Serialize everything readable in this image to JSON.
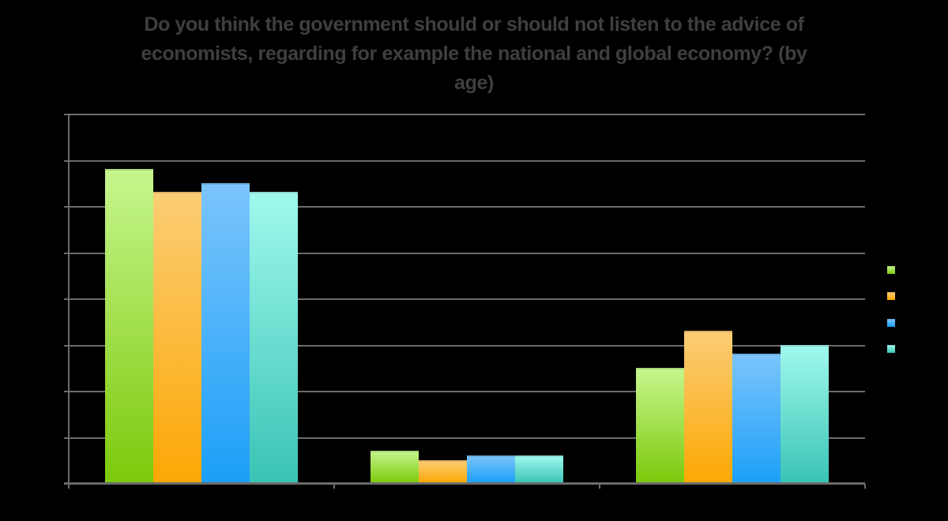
{
  "chart_data": {
    "type": "bar",
    "title": "Do you think the government should or should not listen to the advice of economists, regarding for example the national and global economy? (by age)",
    "title_lines": [
      "Do you think the government should or should not listen to the advice of",
      "economists, regarding for example the national and global economy? (by",
      "age)"
    ],
    "categories": [
      "",
      "",
      ""
    ],
    "series": [
      {
        "name": "",
        "color_top": "#C6F68E",
        "color_bottom": "#7CC90B",
        "values": [
          68,
          7,
          25
        ]
      },
      {
        "name": "",
        "color_top": "#FBCD75",
        "color_bottom": "#FCA805",
        "values": [
          63,
          5,
          33
        ]
      },
      {
        "name": "",
        "color_top": "#7BC5FB",
        "color_bottom": "#1C9FF8",
        "values": [
          65,
          6,
          28
        ]
      },
      {
        "name": "",
        "color_top": "#A1F9EE",
        "color_bottom": "#39C3B4",
        "values": [
          63,
          6,
          30
        ]
      }
    ],
    "xlabel": "",
    "ylabel": "",
    "ylim": [
      0,
      80
    ],
    "gridline_interval": 10,
    "grid": true,
    "legend_position": "right",
    "axis_tick_labels_visible": false,
    "category_labels_visible": false,
    "legend_labels_visible": false,
    "values_note": "percent, estimated from unlabeled gridlines (each series sums to ~100)"
  },
  "colors": {
    "background": "#000000",
    "title": "#3F3F3F",
    "axis_and_grid": "#6B6B6B"
  }
}
